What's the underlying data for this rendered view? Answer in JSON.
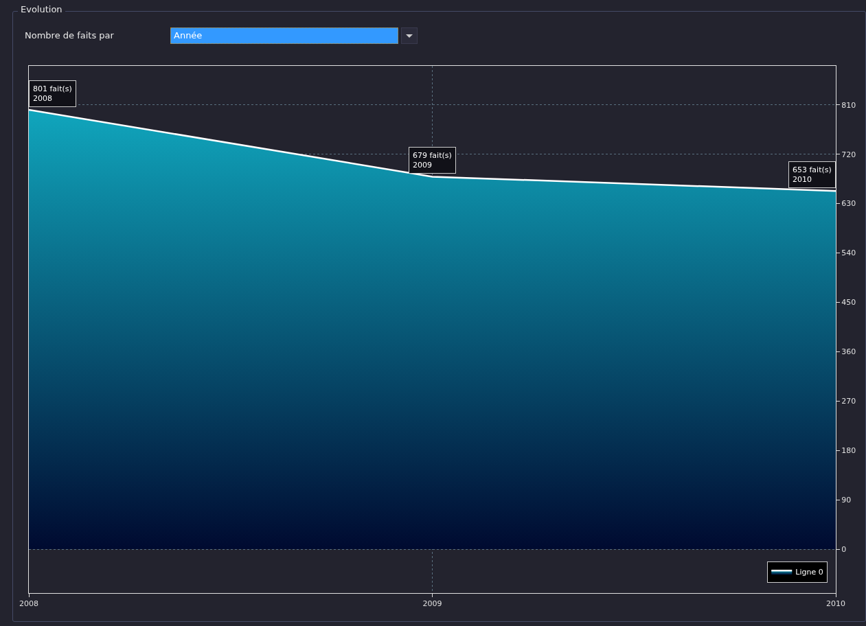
{
  "chart_data": {
    "type": "area",
    "title": "Evolution",
    "subtitle": "Nombre de faits par",
    "annotations": [
      "Année",
      {
        "text": "801 fait(s)\n2008",
        "x": 2008,
        "y": 801
      },
      {
        "text": "679 fait(s)\n2009",
        "x": 2009,
        "y": 679
      },
      {
        "text": "653 fait(s)\n2010",
        "x": 2010,
        "y": 653
      }
    ],
    "x": [
      2008,
      2009,
      2010
    ],
    "series": [
      {
        "name": "Ligne 0",
        "color": "#ffffff",
        "values": [
          801,
          679,
          653
        ]
      }
    ],
    "xlim": [
      2008,
      2010
    ],
    "xticks": [
      2008,
      2009,
      2010
    ],
    "ylim": [
      -80,
      881
    ],
    "yticks": [
      0,
      90,
      180,
      270,
      360,
      450,
      540,
      630,
      720,
      810
    ],
    "grid": true,
    "legend": "bottom right"
  }
}
